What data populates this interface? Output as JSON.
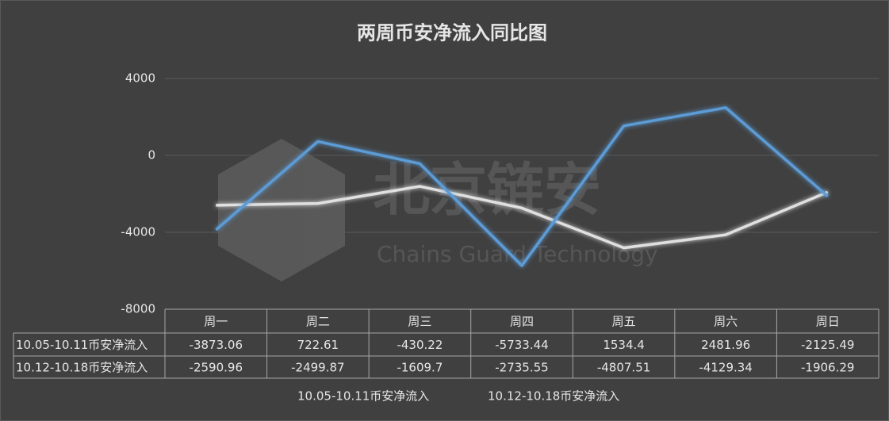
{
  "chart_data": {
    "type": "line",
    "title": "两周币安净流入同比图",
    "categories": [
      "周一",
      "周二",
      "周三",
      "周四",
      "周五",
      "周六",
      "周日"
    ],
    "series": [
      {
        "name": "10.05-10.11币安净流入",
        "color": "#5b9bd5",
        "values": [
          -3873.06,
          722.61,
          -430.22,
          -5733.44,
          1534.4,
          2481.96,
          -2125.49
        ]
      },
      {
        "name": "10.12-10.18币安净流入",
        "color": "#e0e0e0",
        "values": [
          -2590.96,
          -2499.87,
          -1609.7,
          -2735.55,
          -4807.51,
          -4129.34,
          -1906.29
        ]
      }
    ],
    "ylim": [
      -8000,
      4000
    ],
    "yticks": [
      4000,
      0,
      -4000,
      -8000
    ],
    "grid": true,
    "legend": "bottom"
  },
  "watermark": {
    "text": "北京链安",
    "subtext": "Chains Guard Technology"
  }
}
